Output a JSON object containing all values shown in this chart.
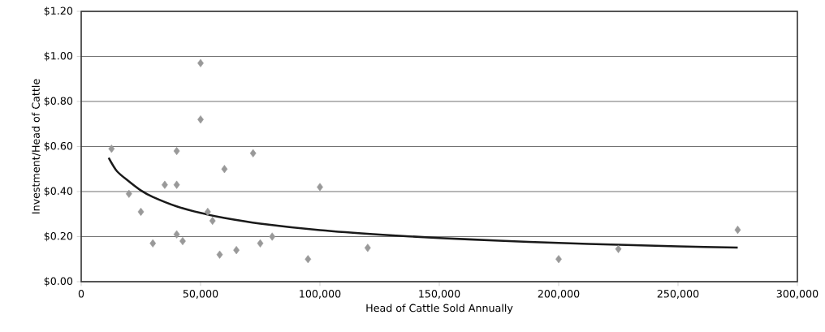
{
  "chart_data": {
    "type": "scatter",
    "xlabel": "Head of Cattle Sold Annually",
    "ylabel": "Investment/Head of Cattle",
    "xlim": [
      0,
      300000
    ],
    "ylim": [
      0,
      1.2
    ],
    "xticks": [
      0,
      {
        "value": 50000,
        "label": "50,000"
      },
      {
        "value": 100000,
        "label": "100,000"
      },
      {
        "value": 150000,
        "label": "150,000"
      },
      {
        "value": 200000,
        "label": "200,000"
      },
      {
        "value": 250000,
        "label": "250,000"
      },
      {
        "value": 300000,
        "label": "300,000"
      }
    ],
    "yticks": [
      {
        "value": 0,
        "label": "$0.00"
      },
      {
        "value": 0.2,
        "label": "$0.20"
      },
      {
        "value": 0.4,
        "label": "$0.40"
      },
      {
        "value": 0.6,
        "label": "$0.60"
      },
      {
        "value": 0.8,
        "label": "$0.80"
      },
      {
        "value": 1.0,
        "label": "$1.00"
      },
      {
        "value": 1.2,
        "label": "$1.20"
      }
    ],
    "grid": "y",
    "series": [
      {
        "marker": "diamond",
        "color": "#999999",
        "x": [
          12700,
          20000,
          25000,
          30000,
          35000,
          40000,
          40000,
          40000,
          42500,
          50000,
          50000,
          53000,
          55000,
          58000,
          60000,
          65000,
          72000,
          75000,
          80000,
          95000,
          100000,
          120000,
          200000,
          225000,
          275000
        ],
        "values": [
          0.59,
          0.39,
          0.31,
          0.17,
          0.43,
          0.58,
          0.43,
          0.21,
          0.18,
          0.97,
          0.72,
          0.31,
          0.27,
          0.12,
          0.5,
          0.14,
          0.57,
          0.17,
          0.2,
          0.1,
          0.42,
          0.15,
          0.1,
          0.145,
          0.23
        ]
      },
      {
        "type": "line",
        "marker": "none",
        "color": "#1a1a1a",
        "line_style": "solid",
        "x": [
          11500,
          15000,
          20000,
          25000,
          30000,
          40000,
          50000,
          60000,
          75000,
          100000,
          125000,
          150000,
          175000,
          200000,
          225000,
          250000,
          275000
        ],
        "values": [
          0.55,
          0.49,
          0.445,
          0.405,
          0.376,
          0.334,
          0.305,
          0.283,
          0.258,
          0.229,
          0.209,
          0.194,
          0.182,
          0.172,
          0.164,
          0.157,
          0.151
        ]
      }
    ]
  }
}
